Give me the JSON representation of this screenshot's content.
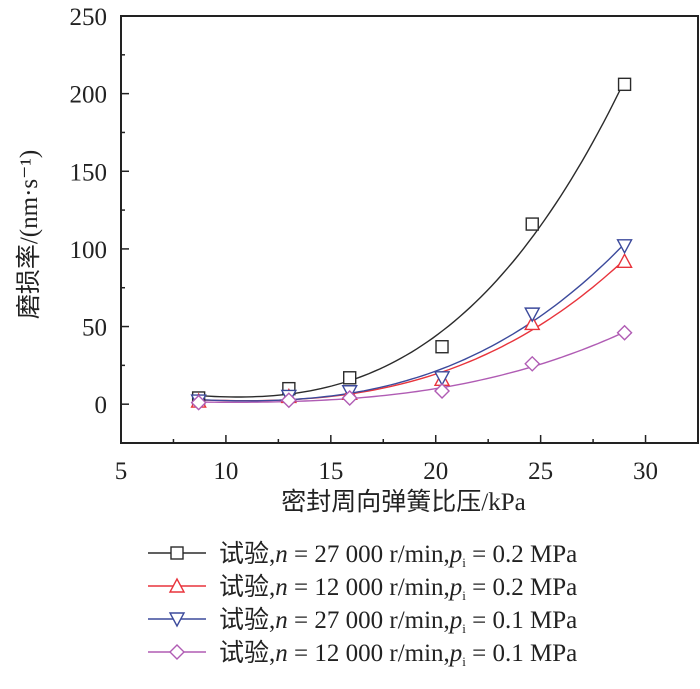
{
  "chart_data": {
    "type": "line",
    "title": "",
    "xlabel": "密封周向弹簧比压/kPa",
    "ylabel": "磨损率/(nm·s⁻¹)",
    "xlim": [
      5,
      32.5
    ],
    "ylim": [
      -25,
      250
    ],
    "x_ticks": [
      5,
      10,
      15,
      20,
      25,
      30
    ],
    "x_tick_labels": [
      "5",
      "10",
      "15",
      "20",
      "25",
      "30"
    ],
    "y_ticks": [
      0,
      50,
      100,
      150,
      200,
      250
    ],
    "y_tick_labels": [
      "0",
      "50",
      "100",
      "150",
      "200",
      "250"
    ],
    "grid": false,
    "legend_position": "bottom",
    "x": [
      8.7,
      13.0,
      15.9,
      20.3,
      24.6,
      29.0
    ],
    "series": [
      {
        "name": "试验,n = 27 000 r/min,pi = 0.2 MPa",
        "legend": {
          "prefix": "试验,",
          "n_sym": "n",
          "n_text": " = 27 000 r/min,",
          "p_sym": "p",
          "p_sub": "i",
          "p_text": " = 0.2 MPa"
        },
        "marker": "square",
        "color": "#2b2b2b",
        "values": [
          4,
          10,
          17,
          37,
          116,
          206
        ]
      },
      {
        "name": "试验,n = 12 000 r/min,pi = 0.2 MPa",
        "legend": {
          "prefix": "试验,",
          "n_sym": "n",
          "n_text": " = 12 000 r/min,",
          "p_sym": "p",
          "p_sub": "i",
          "p_text": " = 0.2 MPa"
        },
        "marker": "triangle-up",
        "color": "#e8343c",
        "values": [
          2,
          5,
          7,
          16,
          52,
          92
        ]
      },
      {
        "name": "试验,n = 27 000 r/min,pi = 0.1 MPa",
        "legend": {
          "prefix": "试验,",
          "n_sym": "n",
          "n_text": " = 27 000 r/min,",
          "p_sym": "p",
          "p_sub": "i",
          "p_text": " = 0.1 MPa"
        },
        "marker": "triangle-down",
        "color": "#3c4a9c",
        "values": [
          2,
          5,
          8,
          17,
          58,
          102
        ]
      },
      {
        "name": "试验,n = 12 000 r/min,pi = 0.1 MPa",
        "legend": {
          "prefix": "试验,",
          "n_sym": "n",
          "n_text": " = 12 000 r/min,",
          "p_sym": "p",
          "p_sub": "i",
          "p_text": " = 0.1 MPa"
        },
        "marker": "diamond",
        "color": "#b05cb4",
        "values": [
          1,
          2.5,
          4,
          8.5,
          26,
          46
        ]
      }
    ]
  }
}
